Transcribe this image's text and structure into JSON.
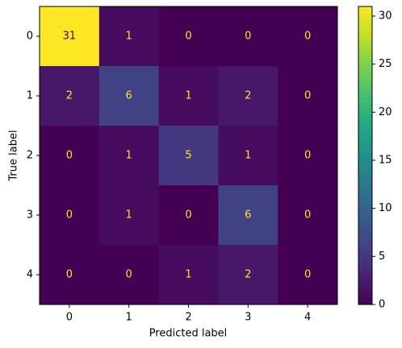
{
  "chart_data": {
    "type": "heatmap",
    "x_label": "Predicted label",
    "y_label": "True label",
    "x_categories": [
      "0",
      "1",
      "2",
      "3",
      "4"
    ],
    "y_categories": [
      "0",
      "1",
      "2",
      "3",
      "4"
    ],
    "z": [
      [
        31,
        1,
        0,
        0,
        0
      ],
      [
        2,
        6,
        1,
        2,
        0
      ],
      [
        0,
        1,
        5,
        1,
        0
      ],
      [
        0,
        1,
        0,
        6,
        0
      ],
      [
        0,
        0,
        1,
        2,
        0
      ]
    ],
    "colormap": "viridis",
    "zlim": [
      0,
      31
    ],
    "zticks": [
      0,
      5,
      10,
      15,
      20,
      25,
      30
    ]
  }
}
